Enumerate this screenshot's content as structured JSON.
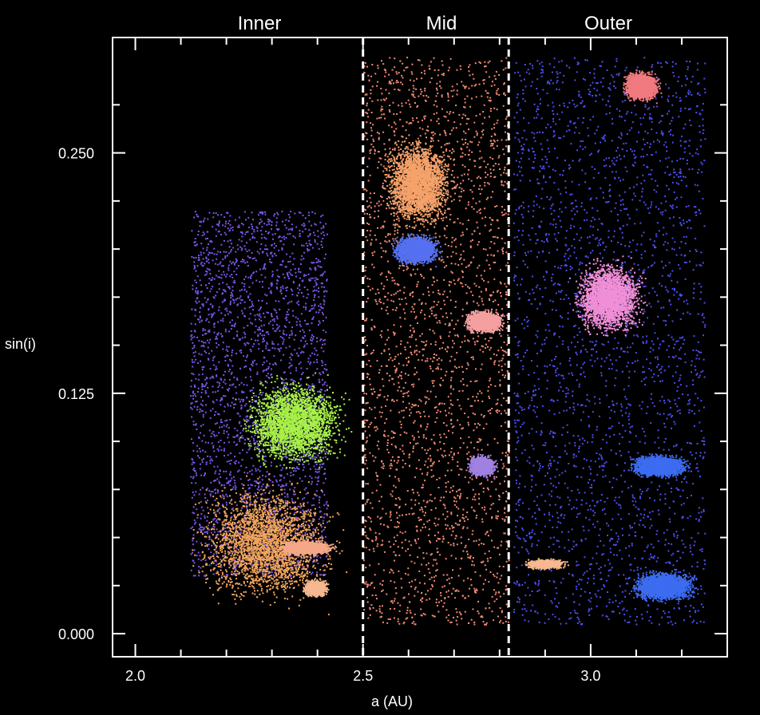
{
  "chart_data": {
    "type": "scatter",
    "title": "",
    "xlabel": "a (AU)",
    "ylabel": "sin(i)",
    "xlim": [
      1.95,
      3.3
    ],
    "ylim": [
      -0.012,
      0.31
    ],
    "x_ticks": [
      2.0,
      2.5,
      3.0
    ],
    "x_tick_labels": [
      "2.0",
      "2.5",
      "3.0"
    ],
    "x_minor_ticks": [
      2.1,
      2.2,
      2.3,
      2.4,
      2.6,
      2.7,
      2.8,
      2.9,
      3.1,
      3.2
    ],
    "y_ticks": [
      0.0,
      0.125,
      0.25
    ],
    "y_tick_labels": [
      "0.000",
      "0.125",
      "0.250"
    ],
    "y_minor_ticks": [
      0.025,
      0.05,
      0.075,
      0.1,
      0.15,
      0.175,
      0.2,
      0.225,
      0.275
    ],
    "grid": false,
    "background": "#000000",
    "axis_color": "#ffffff",
    "zones": [
      {
        "label": "Inner",
        "x_range": [
          2.0,
          2.5
        ]
      },
      {
        "label": "Mid",
        "x_range": [
          2.5,
          2.82
        ]
      },
      {
        "label": "Outer",
        "x_range": [
          2.82,
          3.3
        ]
      }
    ],
    "dividers": [
      {
        "x": 2.5,
        "style": "dashed",
        "color": "#ffffff"
      },
      {
        "x": 2.82,
        "style": "dashed",
        "color": "#ffffff"
      }
    ],
    "clusters": [
      {
        "x": [
          2.42,
          2.12
        ],
        "y": [
          0.03,
          0.22
        ],
        "color": "#7a55e8",
        "density": "diffuse"
      },
      {
        "x": [
          2.08,
          2.49
        ],
        "y": [
          0.005,
          0.09
        ],
        "color": "#f2a55c",
        "density": "dense"
      },
      {
        "x": [
          2.2,
          2.5
        ],
        "y": [
          0.08,
          0.14
        ],
        "color": "#a8f04a",
        "density": "dense"
      },
      {
        "x": [
          2.3,
          2.45
        ],
        "y": [
          0.04,
          0.05
        ],
        "color": "#f5a888",
        "density": "dense"
      },
      {
        "x": [
          2.36,
          2.43
        ],
        "y": [
          0.018,
          0.03
        ],
        "color": "#f5b890",
        "density": "dense"
      },
      {
        "x": [
          2.5,
          2.82
        ],
        "y": [
          0.005,
          0.3
        ],
        "color": "#f08a70",
        "density": "diffuse"
      },
      {
        "x": [
          2.52,
          2.72
        ],
        "y": [
          0.205,
          0.265
        ],
        "color": "#f6a36a",
        "density": "dense"
      },
      {
        "x": [
          2.55,
          2.68
        ],
        "y": [
          0.19,
          0.21
        ],
        "color": "#5570f0",
        "density": "dense"
      },
      {
        "x": [
          2.71,
          2.82
        ],
        "y": [
          0.155,
          0.17
        ],
        "color": "#f5a0a0",
        "density": "dense"
      },
      {
        "x": [
          2.72,
          2.8
        ],
        "y": [
          0.08,
          0.095
        ],
        "color": "#a080e0",
        "density": "dense"
      },
      {
        "x": [
          2.83,
          3.25
        ],
        "y": [
          0.005,
          0.3
        ],
        "color": "#4a4ff0",
        "density": "diffuse"
      },
      {
        "x": [
          2.94,
          3.14
        ],
        "y": [
          0.15,
          0.2
        ],
        "color": "#f08fd8",
        "density": "dense"
      },
      {
        "x": [
          3.06,
          3.16
        ],
        "y": [
          0.275,
          0.295
        ],
        "color": "#f07a80",
        "density": "dense"
      },
      {
        "x": [
          3.07,
          3.25
        ],
        "y": [
          0.015,
          0.035
        ],
        "color": "#3c6cf0",
        "density": "dense"
      },
      {
        "x": [
          3.07,
          3.23
        ],
        "y": [
          0.08,
          0.095
        ],
        "color": "#3c6cf0",
        "density": "dense"
      },
      {
        "x": [
          2.84,
          2.96
        ],
        "y": [
          0.033,
          0.04
        ],
        "color": "#f5b890",
        "density": "dense"
      }
    ]
  }
}
